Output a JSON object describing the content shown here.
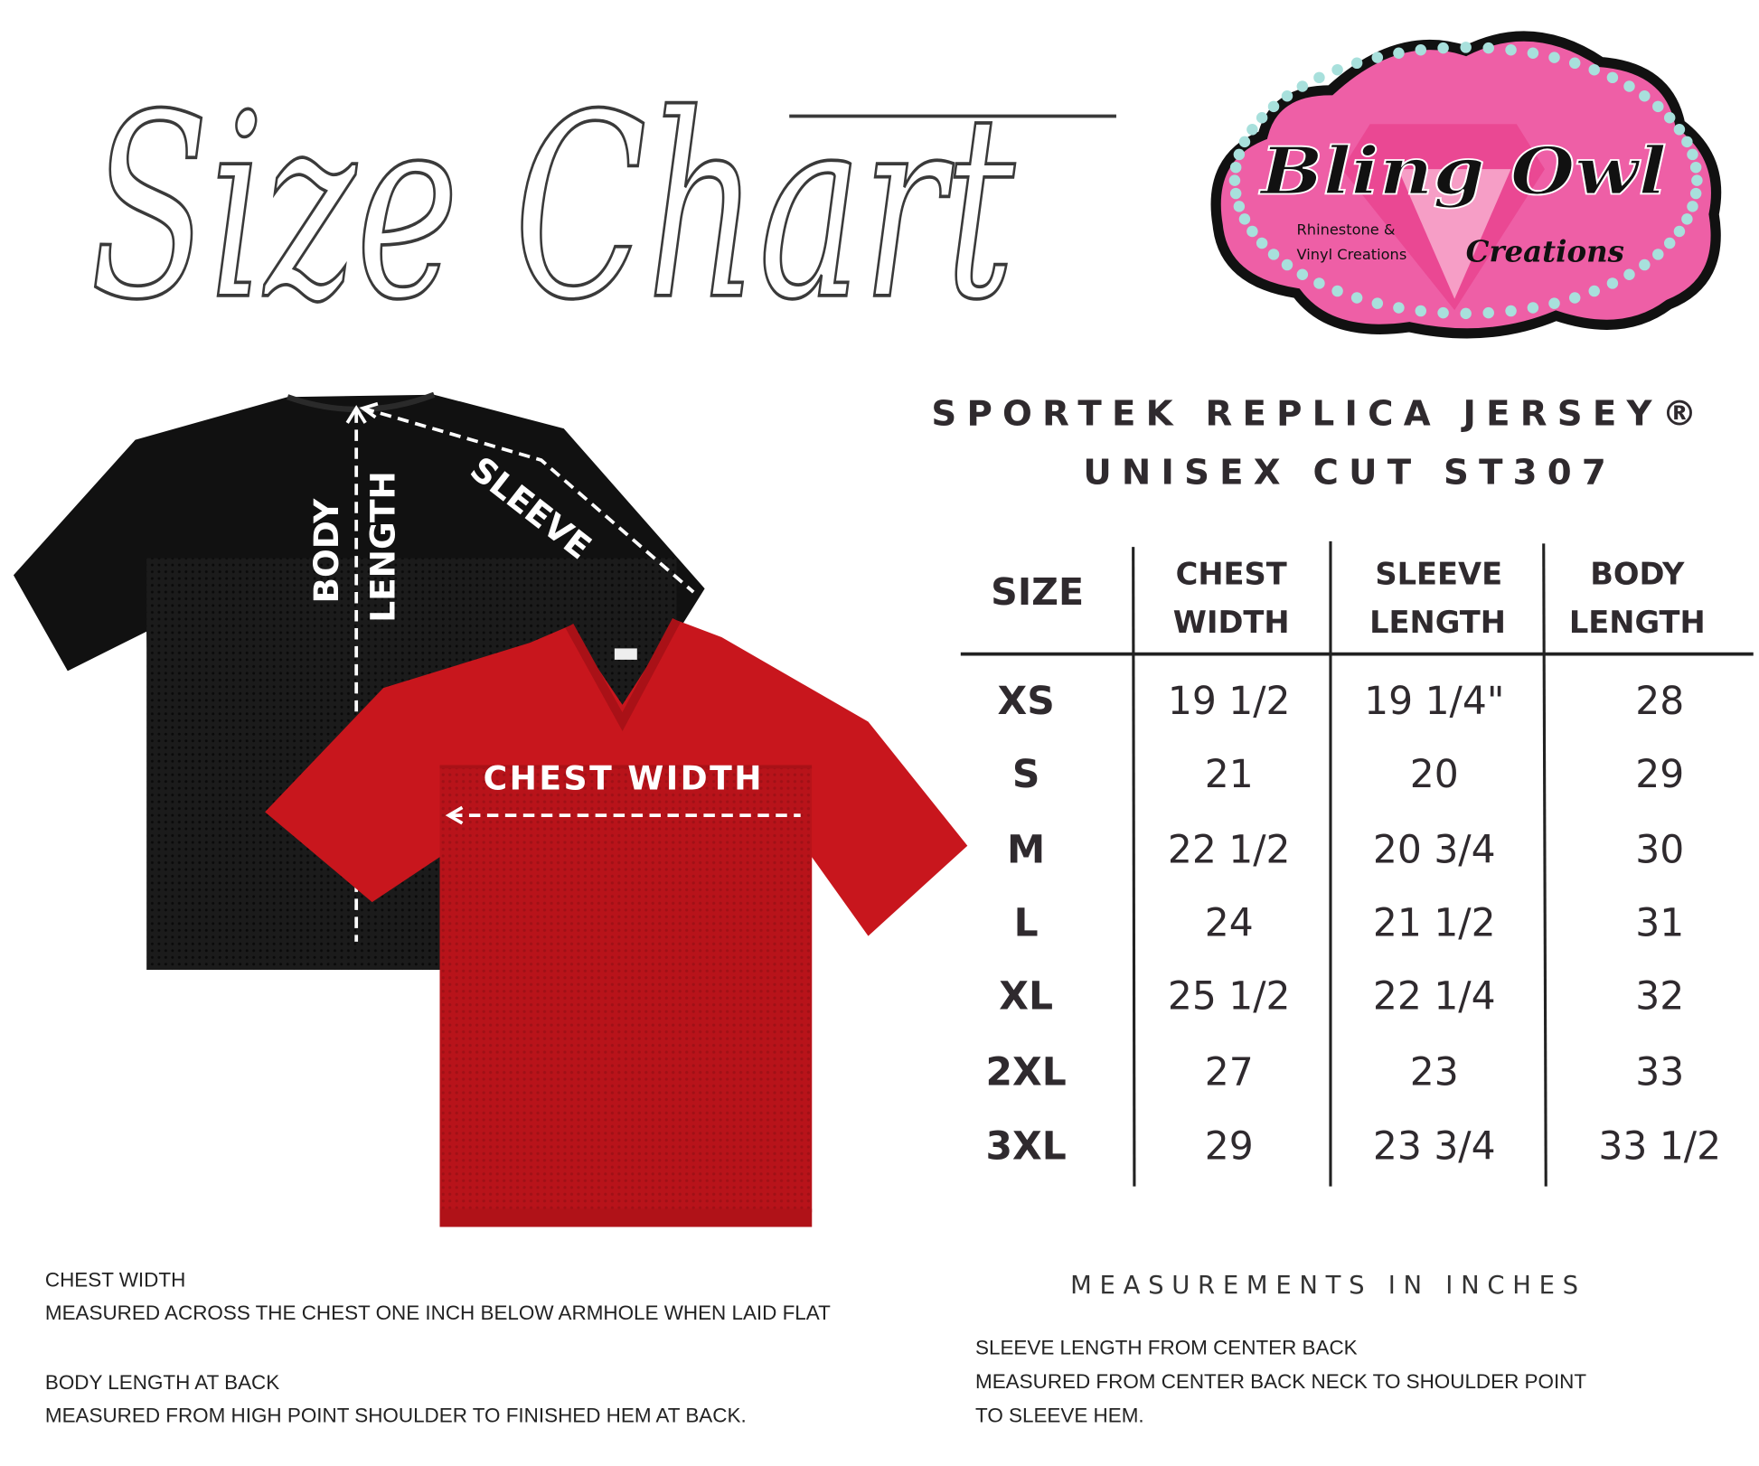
{
  "title": "Size Chart",
  "logo": {
    "name_line1": "Bling Owl",
    "name_line2": "Creations",
    "tagline_line1": "Rhinestone &",
    "tagline_line2": "Vinyl Creations",
    "colors": {
      "pink": "#ee5fa6",
      "border": "#111111",
      "gem": "#a8e0dc"
    }
  },
  "product": {
    "line1": "SPORTEK REPLICA JERSEY®",
    "line2": "UNISEX CUT ST307"
  },
  "jersey_labels": {
    "body": "BODY",
    "length": "LENGTH",
    "sleeve": "SLEEVE",
    "chest_width": "CHEST WIDTH"
  },
  "table": {
    "headers": [
      {
        "line1": "SIZE",
        "line2": ""
      },
      {
        "line1": "CHEST",
        "line2": "WIDTH"
      },
      {
        "line1": "SLEEVE",
        "line2": "LENGTH"
      },
      {
        "line1": "BODY",
        "line2": "LENGTH"
      }
    ],
    "rows": [
      [
        "XS",
        "19 1/2",
        "19 1/4\"",
        "28"
      ],
      [
        "S",
        "21",
        "20",
        "29"
      ],
      [
        "M",
        "22 1/2",
        "20 3/4",
        "30"
      ],
      [
        "L",
        "24",
        "21 1/2",
        "31"
      ],
      [
        "XL",
        "25 1/2",
        "22 1/4",
        "32"
      ],
      [
        "2XL",
        "27",
        "23",
        "33"
      ],
      [
        "3XL",
        "29",
        "23 3/4",
        "33 1/2"
      ]
    ]
  },
  "units_note": "MEASUREMENTS IN INCHES",
  "notes_left": [
    "CHEST WIDTH",
    "MEASURED ACROSS THE CHEST ONE INCH BELOW ARMHOLE WHEN LAID FLAT",
    "BODY LENGTH AT BACK",
    "MEASURED FROM HIGH POINT SHOULDER TO FINISHED HEM AT BACK."
  ],
  "notes_right": [
    "SLEEVE LENGTH FROM CENTER BACK",
    "MEASURED FROM CENTER BACK NECK TO SHOULDER POINT",
    "TO SLEEVE HEM."
  ],
  "colors": {
    "jersey_back": "#111111",
    "jersey_front": "#c8161d",
    "text": "#2f2a2e"
  }
}
